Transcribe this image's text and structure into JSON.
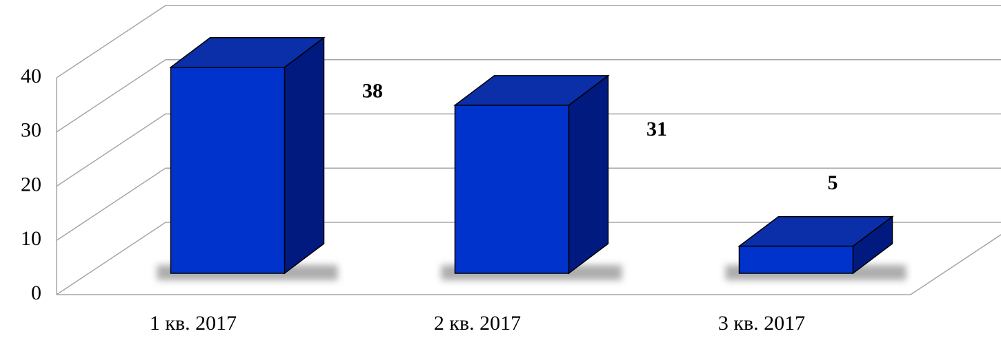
{
  "chart_data": {
    "type": "bar3d",
    "categories": [
      "1 кв. 2017",
      "2 кв. 2017",
      "3 кв. 2017"
    ],
    "values": [
      38,
      31,
      5
    ],
    "color": "#0033cc",
    "ylim": [
      0,
      40
    ],
    "yticks": [
      0,
      10,
      20,
      30,
      40
    ],
    "grid": true
  }
}
